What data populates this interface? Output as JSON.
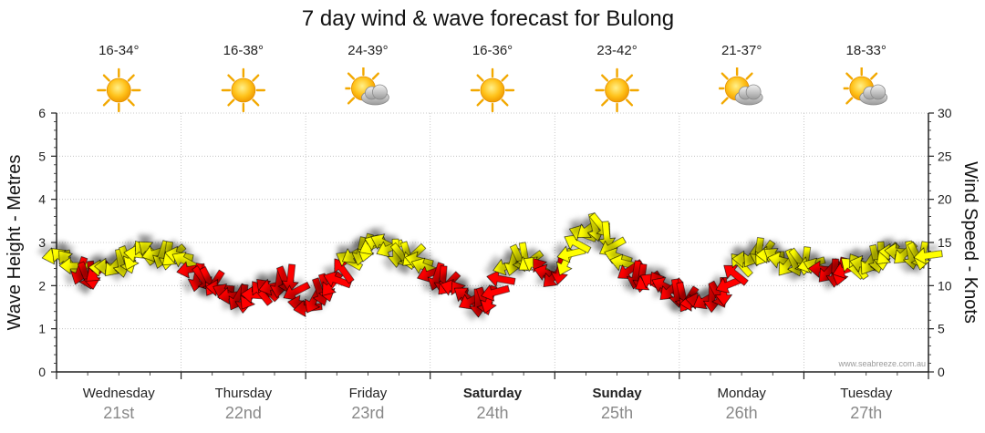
{
  "title": "7 day wind & wave forecast for Bulong",
  "watermark": "www.seabreeze.com.au",
  "colors": {
    "arrow_yellow": "#ffff00",
    "arrow_red": "#ff0000",
    "grid": "#bbbbbb",
    "date_text": "#888888"
  },
  "days": [
    {
      "day": "Wednesday",
      "date": "21st",
      "temp": "16-34°",
      "icon": "sun-icon",
      "weekend": false
    },
    {
      "day": "Thursday",
      "date": "22nd",
      "temp": "16-38°",
      "icon": "sun-icon",
      "weekend": false
    },
    {
      "day": "Friday",
      "date": "23rd",
      "temp": "24-39°",
      "icon": "sun-cloud-icon",
      "weekend": false
    },
    {
      "day": "Saturday",
      "date": "24th",
      "temp": "16-36°",
      "icon": "sun-icon",
      "weekend": true
    },
    {
      "day": "Sunday",
      "date": "25th",
      "temp": "23-42°",
      "icon": "sun-icon",
      "weekend": true
    },
    {
      "day": "Monday",
      "date": "26th",
      "temp": "21-37°",
      "icon": "sun-cloud-icon",
      "weekend": false
    },
    {
      "day": "Tuesday",
      "date": "27th",
      "temp": "18-33°",
      "icon": "sun-cloud-icon",
      "weekend": false
    }
  ],
  "chart_data": {
    "type": "line",
    "title": "7 day wind & wave forecast for Bulong",
    "ylabel_left": "Wave Height - Metres",
    "ylabel_right": "Wind Speed - Knots",
    "ylim_left": [
      0,
      6
    ],
    "ylim_right": [
      0,
      30
    ],
    "yticks_left": [
      "0",
      "1",
      "2",
      "3",
      "4",
      "5",
      "6"
    ],
    "yticks_right": [
      "0",
      "5",
      "10",
      "15",
      "20",
      "25",
      "30"
    ],
    "grid": true,
    "series": [
      {
        "kind": "wind_speed_arrows",
        "axis": "right",
        "x_days": [
          0.0,
          0.125,
          0.25,
          0.375,
          0.5,
          0.625,
          0.75,
          0.875,
          1.0,
          1.125,
          1.25,
          1.375,
          1.5,
          1.625,
          1.75,
          1.875,
          2.0,
          2.125,
          2.25,
          2.375,
          2.5,
          2.625,
          2.75,
          2.875,
          3.0,
          3.125,
          3.25,
          3.375,
          3.5,
          3.625,
          3.75,
          3.875,
          4.0,
          4.125,
          4.25,
          4.375,
          4.5,
          4.625,
          4.75,
          4.875,
          5.0,
          5.125,
          5.25,
          5.375,
          5.5,
          5.625,
          5.75,
          5.875,
          6.0,
          6.125,
          6.25,
          6.375,
          6.5,
          6.625,
          6.75,
          6.875,
          7.0
        ],
        "knots": [
          13.5,
          12.5,
          11.0,
          12.0,
          12.5,
          13.5,
          14.0,
          13.5,
          13.5,
          11.0,
          10.5,
          9.0,
          8.5,
          9.0,
          10.0,
          11.0,
          7.0,
          9.5,
          10.5,
          13.5,
          14.5,
          15.0,
          13.5,
          13.5,
          11.5,
          10.5,
          9.0,
          8.0,
          8.5,
          12.5,
          13.5,
          12.0,
          11.0,
          13.5,
          16.5,
          17.0,
          13.5,
          11.5,
          10.5,
          10.0,
          9.0,
          8.0,
          8.5,
          9.5,
          12.5,
          14.0,
          13.5,
          12.5,
          13.0,
          12.0,
          11.5,
          12.0,
          12.5,
          13.5,
          14.0,
          13.5,
          13.5
        ],
        "color_by_speed": "yellow when >= 12 knots, red when below"
      }
    ]
  }
}
